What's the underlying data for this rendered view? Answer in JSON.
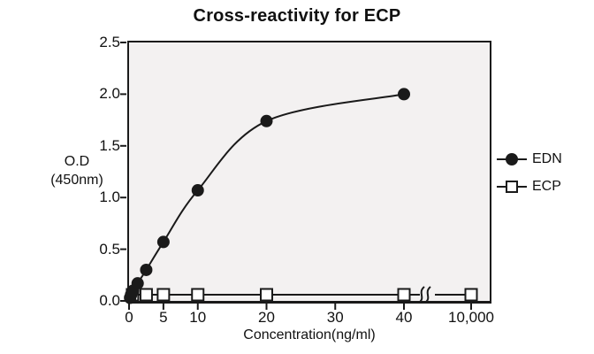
{
  "figure": {
    "title": "Cross-reactivity for ECP",
    "y_axis_label_line1": "O.D",
    "y_axis_label_line2": "(450nm)",
    "x_axis_label": "Concentration(ng/ml)",
    "legend": [
      {
        "label": "EDN",
        "marker": "filled-circle"
      },
      {
        "label": "ECP",
        "marker": "open-square"
      }
    ]
  },
  "chart_data": {
    "type": "line",
    "title": "Cross-reactivity for ECP",
    "xlabel": "Concentration(ng/ml)",
    "ylabel": "O.D (450nm)",
    "ylim": [
      0,
      2.5
    ],
    "y_ticks": [
      0,
      0.5,
      1.0,
      1.5,
      2.0,
      2.5
    ],
    "x_ticks": [
      {
        "label": "0",
        "value": 0
      },
      {
        "label": "5",
        "value": 5
      },
      {
        "label": "10",
        "value": 10
      },
      {
        "label": "20",
        "value": 20
      },
      {
        "label": "30",
        "value": 30
      },
      {
        "label": "40",
        "value": 40
      },
      {
        "label": "10,000",
        "value": 10000
      }
    ],
    "x_axis_break": {
      "after_value": 40,
      "before_value": 10000
    },
    "grid": false,
    "legend_position": "right",
    "plot_background": "#f3f1f1",
    "axis_color": "#1a1a1a",
    "series": [
      {
        "name": "EDN",
        "marker": "filled-circle",
        "color": "#1a1a1a",
        "points": [
          [
            0.15,
            0.03
          ],
          [
            0.3,
            0.06
          ],
          [
            0.6,
            0.1
          ],
          [
            1.25,
            0.17
          ],
          [
            2.5,
            0.3
          ],
          [
            5,
            0.57
          ],
          [
            10,
            1.07
          ],
          [
            20,
            1.74
          ],
          [
            40,
            2.0
          ]
        ]
      },
      {
        "name": "ECP",
        "marker": "open-square",
        "color": "#1a1a1a",
        "points": [
          [
            0.5,
            0.06
          ],
          [
            2.5,
            0.06
          ],
          [
            5,
            0.06
          ],
          [
            10,
            0.06
          ],
          [
            20,
            0.06
          ],
          [
            40,
            0.06
          ],
          [
            10000,
            0.06
          ]
        ]
      }
    ]
  }
}
